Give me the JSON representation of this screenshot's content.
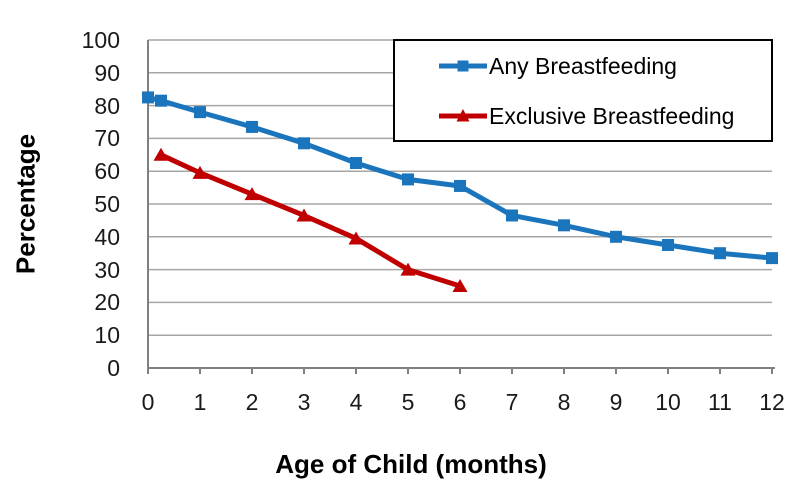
{
  "chart_data": {
    "type": "line",
    "title": "",
    "xlabel": "Age of Child (months)",
    "ylabel": "Percentage",
    "xlim": [
      0,
      12
    ],
    "ylim": [
      0,
      100
    ],
    "x_ticks": [
      0,
      1,
      2,
      3,
      4,
      5,
      6,
      7,
      8,
      9,
      10,
      11,
      12
    ],
    "y_ticks": [
      0,
      10,
      20,
      30,
      40,
      50,
      60,
      70,
      80,
      90,
      100
    ],
    "grid": "horizontal",
    "legend_position": "top-right-inside-boxed",
    "series": [
      {
        "name": "Any Breastfeeding",
        "color": "#1B75BC",
        "marker": "square",
        "x": [
          0,
          0.25,
          1,
          2,
          3,
          4,
          5,
          6,
          7,
          8,
          9,
          10,
          11,
          12
        ],
        "y": [
          82.5,
          81.5,
          78,
          73.5,
          68.5,
          62.5,
          57.5,
          55.5,
          46.5,
          43.5,
          40,
          37.5,
          35,
          33.5
        ]
      },
      {
        "name": "Exclusive Breastfeeding",
        "color": "#C00000",
        "marker": "triangle",
        "x": [
          0.25,
          1,
          2,
          3,
          4,
          5,
          6
        ],
        "y": [
          65,
          59.5,
          53,
          46.5,
          39.5,
          30,
          25
        ]
      }
    ],
    "colors": {
      "gridline": "#A6A6A6",
      "axis": "#808080",
      "text": "#1A1A1A"
    }
  }
}
